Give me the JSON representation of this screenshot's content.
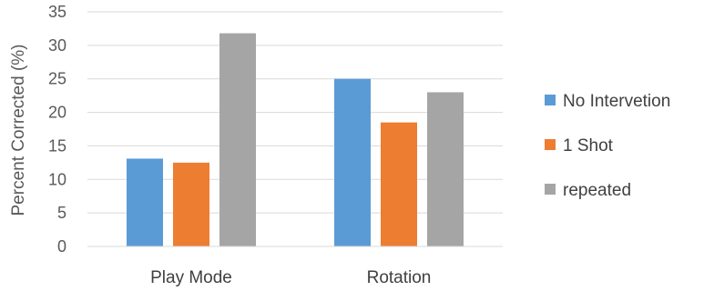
{
  "chart_data": {
    "type": "bar",
    "title": "",
    "xlabel": "",
    "ylabel": "Percent Corrected (%)",
    "ylim": [
      0,
      35
    ],
    "yticks": [
      0,
      5,
      10,
      15,
      20,
      25,
      30,
      35
    ],
    "grid": true,
    "legend_position": "right",
    "categories": [
      "Play Mode",
      "Rotation"
    ],
    "series": [
      {
        "name": "No Intervetion",
        "color": "#5B9BD5",
        "values": [
          13.1,
          25
        ]
      },
      {
        "name": "1 Shot",
        "color": "#ED7D31",
        "values": [
          12.5,
          18.5
        ]
      },
      {
        "name": "repeated",
        "color": "#A5A5A5",
        "values": [
          31.8,
          23
        ]
      }
    ]
  }
}
